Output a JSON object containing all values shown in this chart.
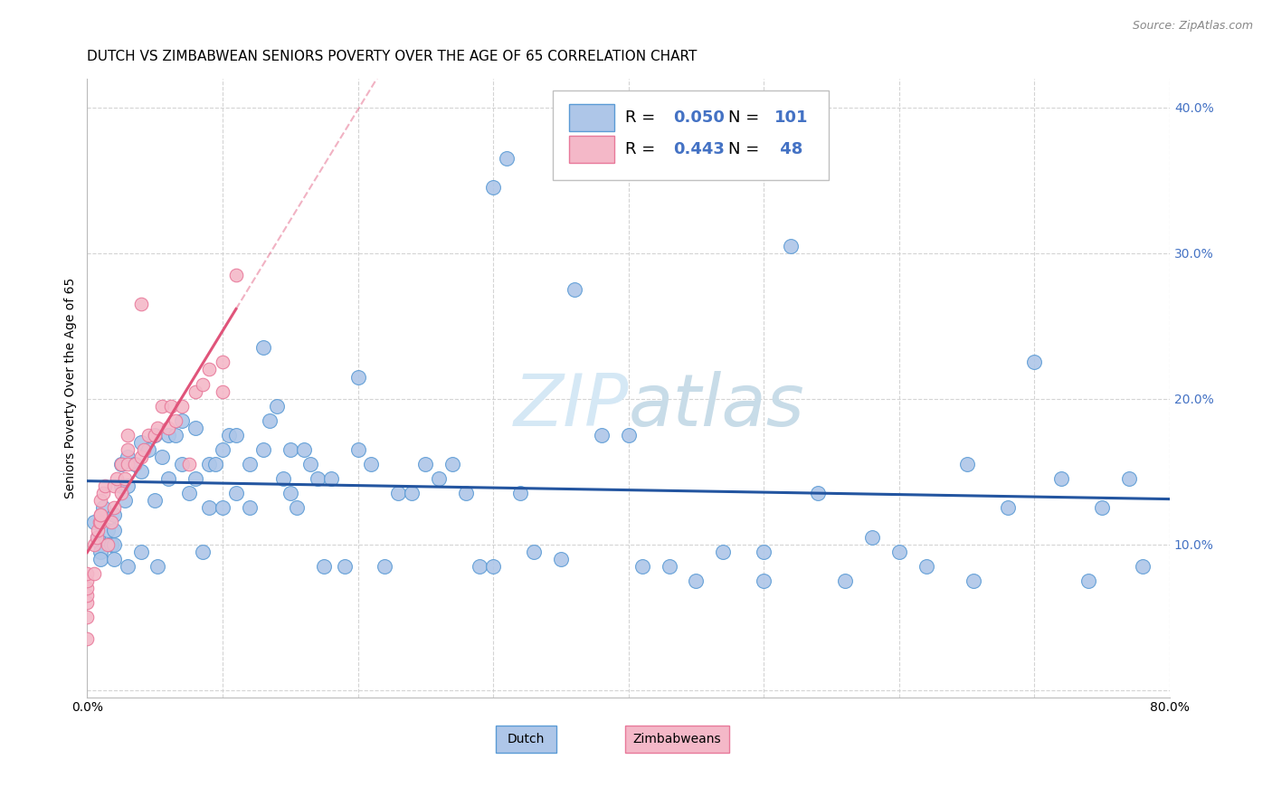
{
  "title": "DUTCH VS ZIMBABWEAN SENIORS POVERTY OVER THE AGE OF 65 CORRELATION CHART",
  "source": "Source: ZipAtlas.com",
  "ylabel": "Seniors Poverty Over the Age of 65",
  "xlim": [
    0.0,
    0.8
  ],
  "ylim": [
    -0.005,
    0.42
  ],
  "dutch_R": "0.050",
  "dutch_N": "101",
  "zimb_R": "0.443",
  "zimb_N": "48",
  "dutch_color": "#aec6e8",
  "dutch_edge_color": "#5b9bd5",
  "dutch_line_color": "#2355a0",
  "zimb_color": "#f4b8c8",
  "zimb_edge_color": "#e8799a",
  "zimb_line_color": "#e0547a",
  "watermark_color": "#d5e8f5",
  "right_tick_color": "#4472c4",
  "legend_text_color": "#4472c4",
  "grid_color": "#d0d0d0",
  "background_color": "#ffffff",
  "dutch_x": [
    0.005,
    0.008,
    0.01,
    0.01,
    0.01,
    0.012,
    0.015,
    0.018,
    0.02,
    0.02,
    0.02,
    0.02,
    0.025,
    0.025,
    0.028,
    0.03,
    0.03,
    0.03,
    0.035,
    0.04,
    0.04,
    0.04,
    0.045,
    0.05,
    0.05,
    0.052,
    0.055,
    0.06,
    0.06,
    0.065,
    0.07,
    0.07,
    0.075,
    0.08,
    0.08,
    0.085,
    0.09,
    0.09,
    0.095,
    0.1,
    0.1,
    0.105,
    0.11,
    0.11,
    0.12,
    0.12,
    0.13,
    0.13,
    0.135,
    0.14,
    0.145,
    0.15,
    0.155,
    0.16,
    0.165,
    0.17,
    0.175,
    0.18,
    0.19,
    0.2,
    0.21,
    0.22,
    0.23,
    0.24,
    0.25,
    0.26,
    0.27,
    0.28,
    0.29,
    0.3,
    0.31,
    0.32,
    0.33,
    0.35,
    0.36,
    0.38,
    0.4,
    0.41,
    0.43,
    0.45,
    0.47,
    0.5,
    0.52,
    0.54,
    0.56,
    0.58,
    0.6,
    0.62,
    0.65,
    0.68,
    0.7,
    0.72,
    0.74,
    0.75,
    0.77,
    0.78,
    0.655,
    0.5,
    0.3,
    0.2,
    0.15
  ],
  "dutch_y": [
    0.115,
    0.105,
    0.1,
    0.095,
    0.09,
    0.125,
    0.11,
    0.1,
    0.12,
    0.11,
    0.1,
    0.09,
    0.155,
    0.14,
    0.13,
    0.16,
    0.14,
    0.085,
    0.155,
    0.17,
    0.15,
    0.095,
    0.165,
    0.175,
    0.13,
    0.085,
    0.16,
    0.175,
    0.145,
    0.175,
    0.185,
    0.155,
    0.135,
    0.18,
    0.145,
    0.095,
    0.155,
    0.125,
    0.155,
    0.165,
    0.125,
    0.175,
    0.175,
    0.135,
    0.155,
    0.125,
    0.235,
    0.165,
    0.185,
    0.195,
    0.145,
    0.165,
    0.125,
    0.165,
    0.155,
    0.145,
    0.085,
    0.145,
    0.085,
    0.165,
    0.155,
    0.085,
    0.135,
    0.135,
    0.155,
    0.145,
    0.155,
    0.135,
    0.085,
    0.345,
    0.365,
    0.135,
    0.095,
    0.09,
    0.275,
    0.175,
    0.175,
    0.085,
    0.085,
    0.075,
    0.095,
    0.095,
    0.305,
    0.135,
    0.075,
    0.105,
    0.095,
    0.085,
    0.155,
    0.125,
    0.225,
    0.145,
    0.075,
    0.125,
    0.145,
    0.085,
    0.075,
    0.075,
    0.085,
    0.215,
    0.135
  ],
  "zimb_x": [
    0.0,
    0.0,
    0.0,
    0.0,
    0.0,
    0.0,
    0.0,
    0.005,
    0.005,
    0.007,
    0.008,
    0.009,
    0.01,
    0.01,
    0.01,
    0.01,
    0.012,
    0.013,
    0.015,
    0.018,
    0.02,
    0.02,
    0.022,
    0.025,
    0.025,
    0.028,
    0.03,
    0.03,
    0.03,
    0.035,
    0.04,
    0.04,
    0.042,
    0.045,
    0.05,
    0.052,
    0.055,
    0.06,
    0.062,
    0.065,
    0.07,
    0.075,
    0.08,
    0.085,
    0.09,
    0.1,
    0.1,
    0.11
  ],
  "zimb_y": [
    0.035,
    0.05,
    0.06,
    0.065,
    0.07,
    0.075,
    0.08,
    0.08,
    0.1,
    0.105,
    0.11,
    0.115,
    0.115,
    0.12,
    0.12,
    0.13,
    0.135,
    0.14,
    0.1,
    0.115,
    0.125,
    0.14,
    0.145,
    0.155,
    0.135,
    0.145,
    0.155,
    0.165,
    0.175,
    0.155,
    0.16,
    0.265,
    0.165,
    0.175,
    0.175,
    0.18,
    0.195,
    0.18,
    0.195,
    0.185,
    0.195,
    0.155,
    0.205,
    0.21,
    0.22,
    0.205,
    0.225,
    0.285
  ],
  "title_fontsize": 11,
  "source_fontsize": 9,
  "ylabel_fontsize": 10,
  "tick_fontsize": 10,
  "legend_fontsize": 13,
  "watermark_fontsize": 58
}
